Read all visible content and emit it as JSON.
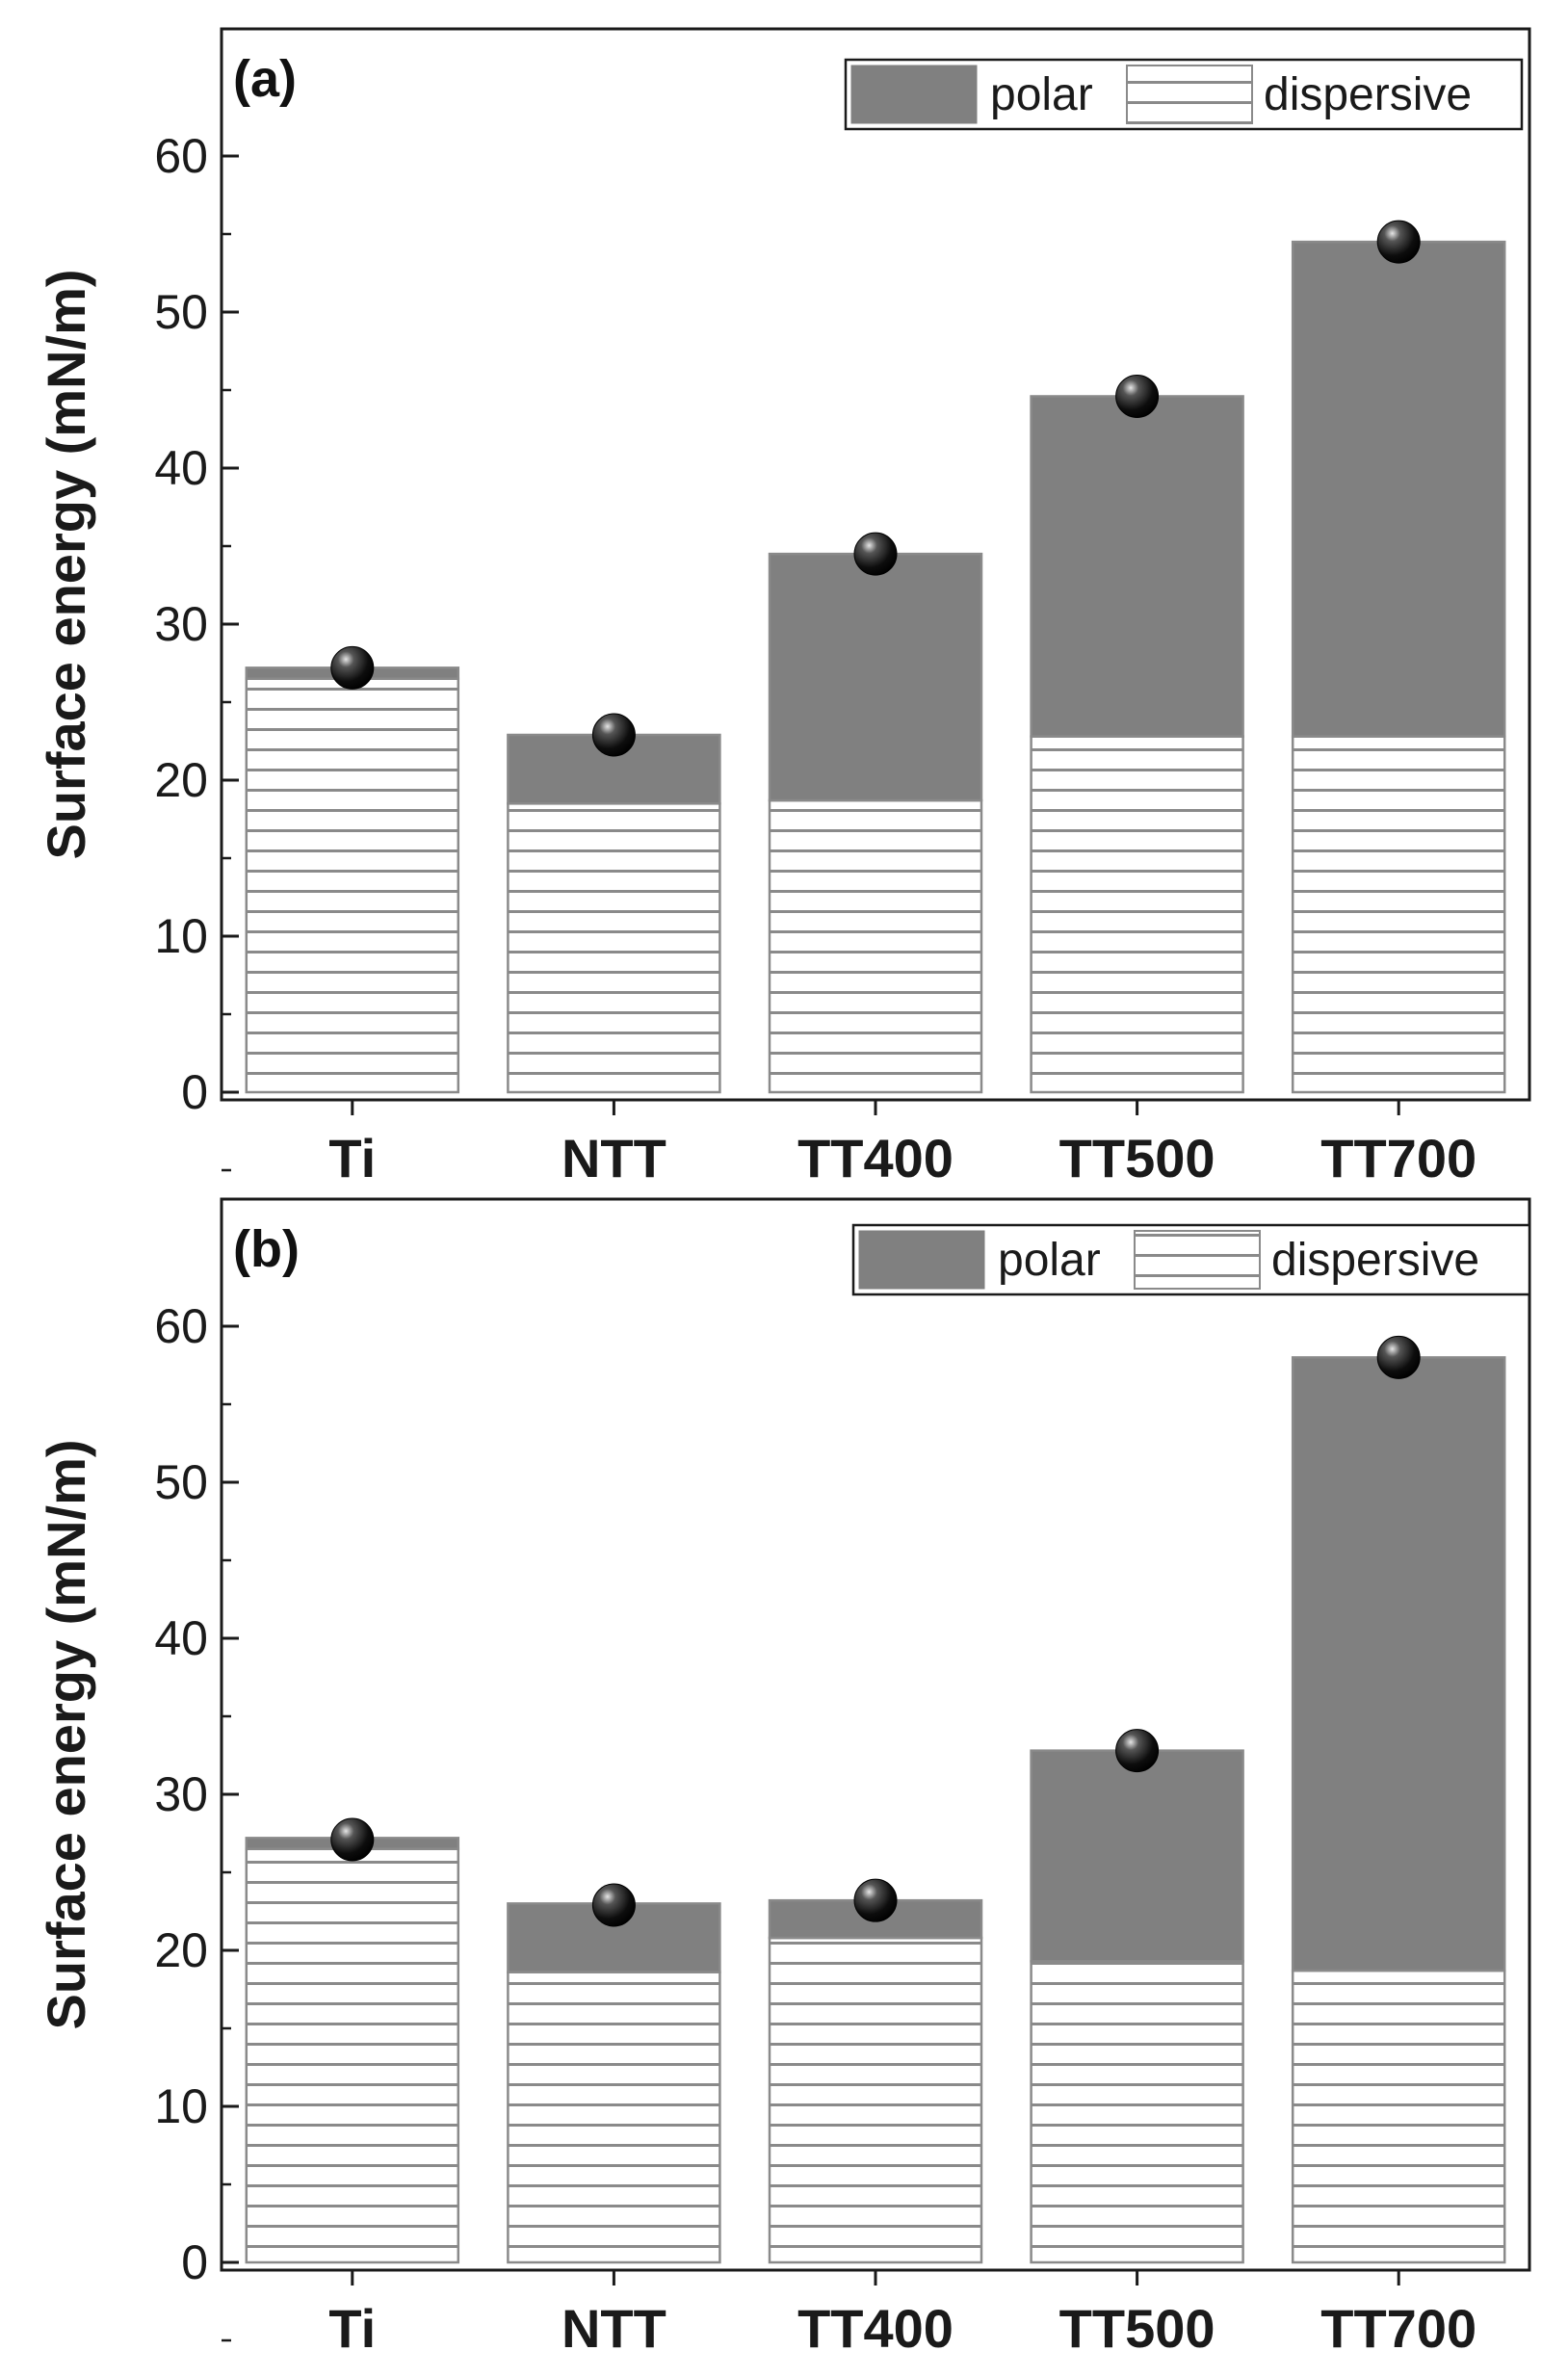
{
  "chart_data": [
    {
      "type": "bar",
      "stacked": true,
      "panel_label": "(a)",
      "categories": [
        "Ti",
        "NTT",
        "TT400",
        "TT500",
        "TT700"
      ],
      "ylabel": "Surface energy (mN/m)",
      "ylim": [
        0,
        68
      ],
      "yticks": [
        0,
        10,
        20,
        30,
        40,
        50,
        60
      ],
      "legend": {
        "position": "top-right",
        "entries": [
          "polar",
          "dispersive"
        ]
      },
      "series": [
        {
          "name": "dispersive",
          "pattern": "horizontal-lines",
          "values": [
            26.5,
            18.5,
            18.7,
            22.8,
            22.8
          ]
        },
        {
          "name": "polar",
          "color": "#808080",
          "values": [
            0.7,
            4.4,
            15.8,
            21.8,
            31.7
          ]
        }
      ],
      "total_markers": [
        27.2,
        22.9,
        34.5,
        44.6,
        54.5
      ],
      "colors": {
        "polar": "#808080",
        "dispersive_fill": "#ffffff",
        "hatch": "#8a8a8a",
        "marker": "#000000"
      }
    },
    {
      "type": "bar",
      "stacked": true,
      "panel_label": "(b)",
      "categories": [
        "Ti",
        "NTT",
        "TT400",
        "TT500",
        "TT700"
      ],
      "ylabel": "Surface energy (mN/m)",
      "ylim": [
        0,
        68
      ],
      "yticks": [
        0,
        10,
        20,
        30,
        40,
        50,
        60
      ],
      "legend": {
        "position": "top-right",
        "entries": [
          "polar",
          "dispersive"
        ]
      },
      "series": [
        {
          "name": "dispersive",
          "pattern": "horizontal-lines",
          "values": [
            26.5,
            18.6,
            20.8,
            19.3,
            18.7
          ]
        },
        {
          "name": "polar",
          "color": "#808080",
          "values": [
            0.7,
            4.4,
            2.4,
            13.5,
            39.3
          ]
        }
      ],
      "total_markers": [
        27.1,
        22.9,
        23.2,
        32.8,
        58.0
      ],
      "colors": {
        "polar": "#808080",
        "dispersive_fill": "#ffffff",
        "hatch": "#8a8a8a",
        "marker": "#000000"
      }
    }
  ]
}
